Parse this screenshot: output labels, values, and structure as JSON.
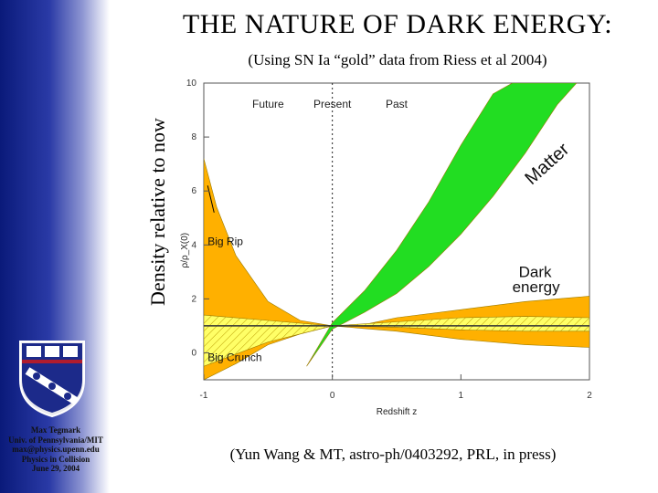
{
  "slide": {
    "title": "THE NATURE OF DARK ENERGY:",
    "subtitle": "(Using SN Ia “gold” data from Riess et al 2004)",
    "ylabel_outer": "Density relative to now",
    "citation": "(Yun Wang & MT, astro-ph/0403292, PRL, in press)"
  },
  "affiliation": {
    "lines": [
      "Max Tegmark",
      "Univ. of Pennsylvania/MIT",
      "max@physics.upenn.edu",
      "Physics in Collision",
      "June 29, 2004"
    ]
  },
  "chart_data": {
    "type": "area",
    "title": "",
    "xlabel": "Redshift z",
    "ylabel": "ρ/ρ_X(0)",
    "xlim": [
      -1,
      2
    ],
    "ylim": [
      -1,
      10
    ],
    "xticks": [
      {
        "value": -1,
        "label": "-1"
      },
      {
        "value": 0,
        "label": "0"
      },
      {
        "value": 1,
        "label": "1"
      },
      {
        "value": 2,
        "label": "2"
      }
    ],
    "yticks": [
      {
        "value": 0,
        "label": "0"
      },
      {
        "value": 2,
        "label": "2"
      },
      {
        "value": 4,
        "label": "4"
      },
      {
        "value": 6,
        "label": "6"
      },
      {
        "value": 8,
        "label": "8"
      },
      {
        "value": 10,
        "label": "10"
      }
    ],
    "regions": [
      {
        "label": "Future",
        "x": -0.5
      },
      {
        "label": "Present",
        "x": 0
      },
      {
        "label": "Past",
        "x": 0.5
      }
    ],
    "series": [
      {
        "name": "Matter",
        "color": "#22dd22",
        "upper": [
          [
            -0.2,
            -0.5
          ],
          [
            0,
            1.12
          ],
          [
            0.25,
            2.3
          ],
          [
            0.5,
            3.8
          ],
          [
            0.75,
            5.6
          ],
          [
            1,
            7.7
          ],
          [
            1.25,
            9.6
          ],
          [
            1.4,
            10
          ]
        ],
        "lower": [
          [
            0,
            0.88
          ],
          [
            0.25,
            1.5
          ],
          [
            0.5,
            2.2
          ],
          [
            0.75,
            3.2
          ],
          [
            1,
            4.4
          ],
          [
            1.25,
            5.8
          ],
          [
            1.5,
            7.4
          ],
          [
            1.75,
            9.2
          ],
          [
            1.9,
            10
          ]
        ]
      },
      {
        "name": "Dark energy (outer band)",
        "color": "#ffb000",
        "upper": [
          [
            -1,
            7.2
          ],
          [
            -0.9,
            5.4
          ],
          [
            -0.75,
            3.6
          ],
          [
            -0.5,
            1.9
          ],
          [
            -0.25,
            1.2
          ],
          [
            0,
            1
          ],
          [
            0.25,
            1.05
          ],
          [
            0.5,
            1.3
          ],
          [
            1,
            1.6
          ],
          [
            1.5,
            1.9
          ],
          [
            2,
            2.1
          ]
        ],
        "lower": [
          [
            -1,
            -1
          ],
          [
            -0.75,
            -0.4
          ],
          [
            -0.5,
            0.3
          ],
          [
            -0.25,
            0.7
          ],
          [
            0,
            1
          ],
          [
            0.25,
            0.9
          ],
          [
            0.5,
            0.8
          ],
          [
            1,
            0.5
          ],
          [
            1.5,
            0.3
          ],
          [
            2,
            0.2
          ]
        ]
      },
      {
        "name": "Dark energy (inner band)",
        "color": "#ffff66",
        "upper": [
          [
            -1,
            1.4
          ],
          [
            -0.5,
            1.2
          ],
          [
            0,
            1
          ],
          [
            0.5,
            1.15
          ],
          [
            1,
            1.3
          ],
          [
            1.5,
            1.35
          ],
          [
            2,
            1.3
          ]
        ],
        "lower": [
          [
            -1,
            -0.5
          ],
          [
            -0.5,
            0.4
          ],
          [
            0,
            1
          ],
          [
            0.5,
            0.95
          ],
          [
            1,
            0.85
          ],
          [
            1.5,
            0.8
          ],
          [
            2,
            0.8
          ]
        ]
      }
    ],
    "reference_line": {
      "name": "Constant dark energy",
      "value": 1
    },
    "annotations": [
      {
        "text": "Matter",
        "x": 1.55,
        "y": 6.2
      },
      {
        "text": "Dark",
        "x": 1.45,
        "y": 2.8
      },
      {
        "text": "energy",
        "x": 1.4,
        "y": 2.25
      },
      {
        "text": "Big Rip",
        "x": -0.97,
        "y": 4.0
      },
      {
        "text": "Big Crunch",
        "x": -0.97,
        "y": -0.3
      }
    ]
  }
}
